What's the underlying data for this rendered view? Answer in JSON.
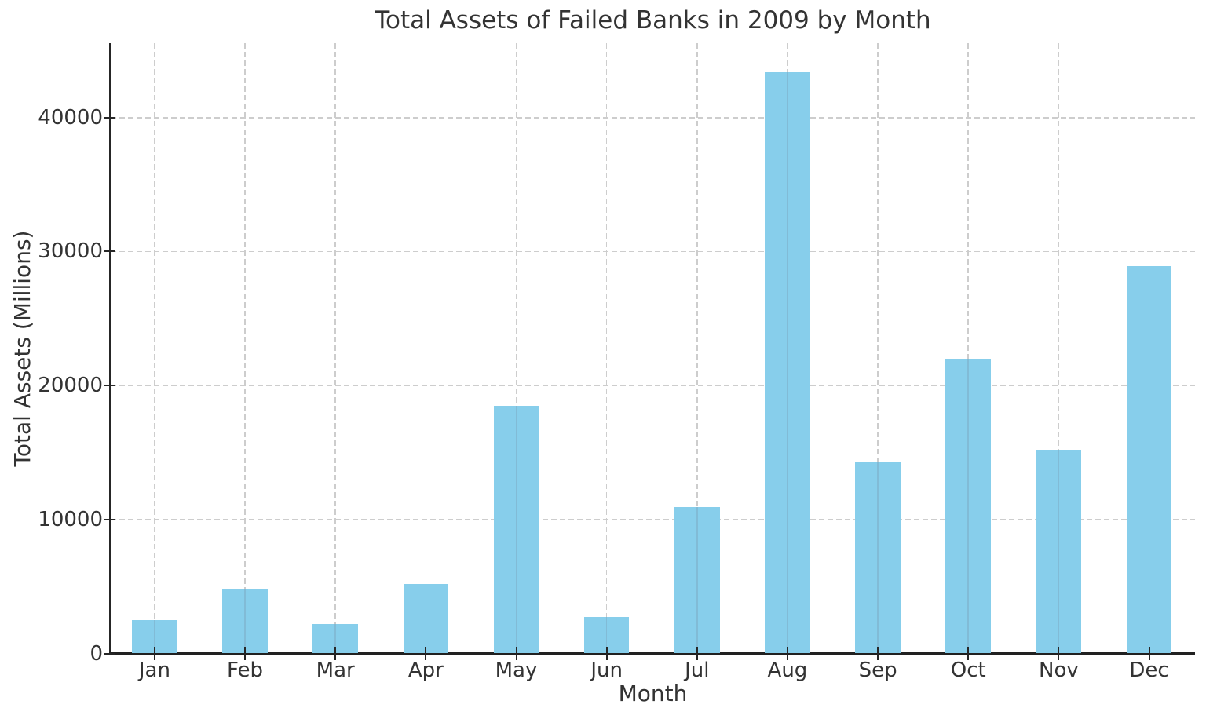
{
  "chart_data": {
    "type": "bar",
    "title": "Total Assets of Failed Banks in 2009 by Month",
    "xlabel": "Month",
    "ylabel": "Total Assets (Millions)",
    "categories": [
      "Jan",
      "Feb",
      "Mar",
      "Apr",
      "May",
      "Jun",
      "Jul",
      "Aug",
      "Sep",
      "Oct",
      "Nov",
      "Dec"
    ],
    "values": [
      2500,
      4800,
      2200,
      5200,
      18500,
      2750,
      10900,
      43400,
      14300,
      22000,
      15200,
      28900
    ],
    "yticks": [
      0,
      10000,
      20000,
      30000,
      40000
    ],
    "ylim": [
      0,
      45550
    ],
    "grid": true,
    "grid_style": "dashed",
    "legend_position": "none",
    "bar_color": "#87CEEB",
    "background_color": "#ffffff",
    "text_color": "#333333",
    "spine_color": "#262626",
    "grid_color": "#cdcdcd"
  }
}
